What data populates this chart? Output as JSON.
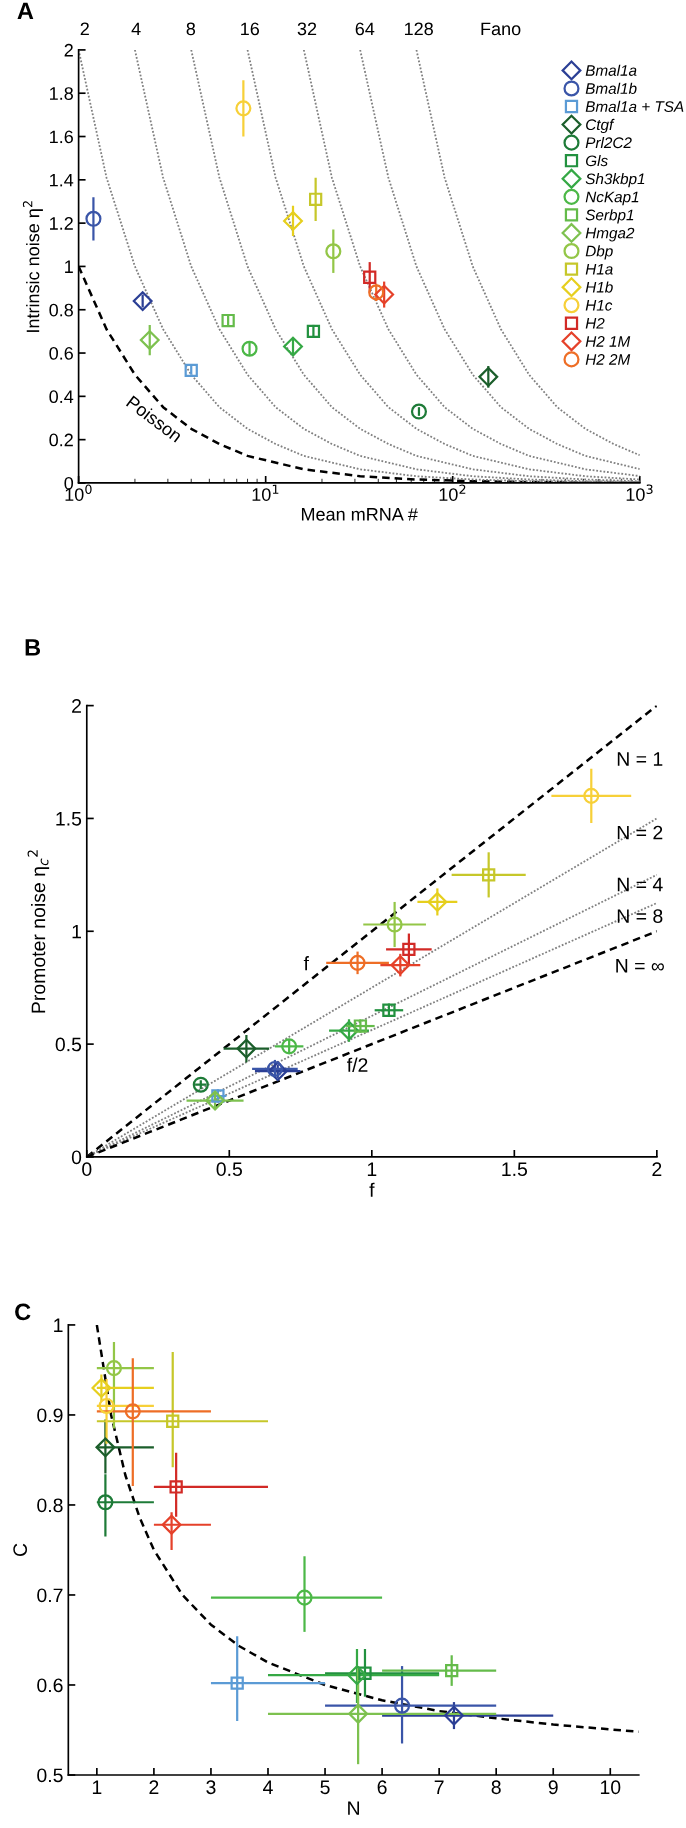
{
  "chart_data": [
    {
      "type": "scatter",
      "title": "A",
      "xlabel": "Mean mRNA #",
      "ylabel": "Intrinsic noise η$^{2}$",
      "log": "x",
      "legend": "top right",
      "xlim": [
        1,
        1000
      ],
      "ylim": [
        0,
        2
      ],
      "xticks": [
        {
          "value": 1,
          "label": "10$^{0}$"
        },
        {
          "value": 10,
          "label": "10$^{1}$"
        },
        {
          "value": 100,
          "label": "10$^{2}$"
        },
        {
          "value": 1000,
          "label": "10$^{3}$"
        }
      ],
      "yticks": [
        0,
        0.2,
        0.4,
        0.6,
        0.8,
        1,
        1.2,
        1.4,
        1.6,
        1.8,
        2
      ],
      "annotations": [
        "Poisson",
        "2",
        "4",
        "8",
        "16",
        "32",
        "64",
        "128",
        "Fano"
      ],
      "series": [
        {
          "type": "line",
          "color": "#000000",
          "line_style": "dashed",
          "x": [
            1,
            1.41,
            2,
            2.83,
            4,
            5.66,
            8,
            16,
            32,
            64,
            128,
            256,
            512,
            1000
          ],
          "values": [
            1,
            0.71,
            0.5,
            0.35,
            0.25,
            0.18,
            0.125,
            0.063,
            0.031,
            0.016,
            0.008,
            0.004,
            0.002,
            0.001
          ]
        },
        {
          "type": "line",
          "color": "#808080",
          "line_style": "dotted",
          "x": [
            1,
            1.41,
            2,
            2.83,
            4,
            5.66,
            8,
            11.3,
            16,
            32,
            64,
            128,
            256,
            1000
          ],
          "values": [
            2,
            1.41,
            1,
            0.71,
            0.5,
            0.35,
            0.25,
            0.18,
            0.125,
            0.063,
            0.031,
            0.016,
            0.008,
            0.002
          ]
        },
        {
          "type": "line",
          "color": "#808080",
          "line_style": "dotted",
          "x": [
            2,
            2.83,
            4,
            5.66,
            8,
            11.3,
            16,
            22.6,
            32,
            64,
            128,
            256,
            512,
            1000
          ],
          "values": [
            2,
            1.41,
            1,
            0.71,
            0.5,
            0.35,
            0.25,
            0.18,
            0.125,
            0.063,
            0.031,
            0.016,
            0.008,
            0.004
          ]
        },
        {
          "type": "line",
          "color": "#808080",
          "line_style": "dotted",
          "x": [
            4,
            5.66,
            8,
            11.3,
            16,
            22.6,
            32,
            45.3,
            64,
            128,
            256,
            512,
            1000
          ],
          "values": [
            2,
            1.41,
            1,
            0.71,
            0.5,
            0.35,
            0.25,
            0.18,
            0.125,
            0.063,
            0.031,
            0.016,
            0.008
          ]
        },
        {
          "type": "line",
          "color": "#808080",
          "line_style": "dotted",
          "x": [
            8,
            11.3,
            16,
            22.6,
            32,
            45.3,
            64,
            90.5,
            128,
            256,
            512,
            1000
          ],
          "values": [
            2,
            1.41,
            1,
            0.71,
            0.5,
            0.35,
            0.25,
            0.18,
            0.125,
            0.063,
            0.031,
            0.016
          ]
        },
        {
          "type": "line",
          "color": "#808080",
          "line_style": "dotted",
          "x": [
            16,
            22.6,
            32,
            45.3,
            64,
            90.5,
            128,
            181,
            256,
            512,
            1000
          ],
          "values": [
            2,
            1.41,
            1,
            0.71,
            0.5,
            0.35,
            0.25,
            0.18,
            0.125,
            0.063,
            0.032
          ]
        },
        {
          "type": "line",
          "color": "#808080",
          "line_style": "dotted",
          "x": [
            32,
            45.3,
            64,
            90.5,
            128,
            181,
            256,
            362,
            512,
            1000
          ],
          "values": [
            2,
            1.41,
            1,
            0.71,
            0.5,
            0.35,
            0.25,
            0.18,
            0.125,
            0.064
          ]
        },
        {
          "type": "line",
          "color": "#808080",
          "line_style": "dotted",
          "x": [
            64,
            90.5,
            128,
            181,
            256,
            362,
            512,
            724,
            1000
          ],
          "values": [
            2,
            1.41,
            1,
            0.71,
            0.5,
            0.35,
            0.25,
            0.18,
            0.128
          ]
        },
        {
          "name": "Bmal1a",
          "color": "#2b3f95",
          "marker": "diamond",
          "x": [
            2.2
          ],
          "values": [
            0.84
          ],
          "errors": [
            0.03
          ]
        },
        {
          "name": "Bmal1b",
          "color": "#3a55a8",
          "marker": "circle",
          "x": [
            1.2
          ],
          "values": [
            1.22
          ],
          "errors": [
            0.1
          ]
        },
        {
          "name": "Bmal1a + TSA",
          "color": "#5b9bd5",
          "marker": "square",
          "x": [
            4.0
          ],
          "values": [
            0.52
          ],
          "errors": [
            0.02
          ]
        },
        {
          "name": "Ctgf",
          "color": "#1b5e2b",
          "marker": "diamond",
          "x": [
            155
          ],
          "values": [
            0.49
          ],
          "errors": [
            0.05
          ]
        },
        {
          "name": "Prl2C2",
          "color": "#1e7b38",
          "marker": "circle",
          "x": [
            66
          ],
          "values": [
            0.33
          ],
          "errors": [
            0.02
          ]
        },
        {
          "name": "Gls",
          "color": "#22913f",
          "marker": "square",
          "x": [
            18
          ],
          "values": [
            0.7
          ],
          "errors": [
            0.03
          ]
        },
        {
          "name": "Sh3kbp1",
          "color": "#35a845",
          "marker": "diamond",
          "x": [
            14
          ],
          "values": [
            0.63
          ],
          "errors": [
            0.04
          ]
        },
        {
          "name": "NcKap1",
          "color": "#4cb847",
          "marker": "circle",
          "x": [
            8.2
          ],
          "values": [
            0.62
          ],
          "errors": [
            0.03
          ]
        },
        {
          "name": "Serbp1",
          "color": "#64bb4a",
          "marker": "square",
          "x": [
            6.3
          ],
          "values": [
            0.75
          ],
          "errors": [
            0.03
          ]
        },
        {
          "name": "Hmga2",
          "color": "#7dc14f",
          "marker": "diamond",
          "x": [
            2.4
          ],
          "values": [
            0.66
          ],
          "errors": [
            0.07
          ]
        },
        {
          "name": "Dbp",
          "color": "#93c647",
          "marker": "circle",
          "x": [
            23
          ],
          "values": [
            1.07
          ],
          "errors": [
            0.1
          ]
        },
        {
          "name": "H1a",
          "color": "#c6c72a",
          "marker": "square",
          "x": [
            18.5
          ],
          "values": [
            1.31
          ],
          "errors": [
            0.1
          ]
        },
        {
          "name": "H1b",
          "color": "#e6cf1e",
          "marker": "diamond",
          "x": [
            14
          ],
          "values": [
            1.21
          ],
          "errors": [
            0.07
          ]
        },
        {
          "name": "H1c",
          "color": "#f7d038",
          "marker": "circle",
          "x": [
            7.6
          ],
          "values": [
            1.73
          ],
          "errors": [
            0.13
          ]
        },
        {
          "name": "H2",
          "color": "#d22a26",
          "marker": "square",
          "x": [
            36
          ],
          "values": [
            0.95
          ],
          "errors": [
            0.07
          ]
        },
        {
          "name": "H2 1M",
          "color": "#e5412a",
          "marker": "diamond",
          "x": [
            43
          ],
          "values": [
            0.87
          ],
          "errors": [
            0.06
          ]
        },
        {
          "name": "H2 2M",
          "color": "#ee6e26",
          "marker": "circle",
          "x": [
            39
          ],
          "values": [
            0.88
          ],
          "errors": [
            0.04
          ]
        }
      ]
    },
    {
      "type": "scatter",
      "title": "B",
      "xlabel": "f",
      "ylabel": "Promoter noise η$_{c}$$^{2}$",
      "xlim": [
        0,
        2
      ],
      "ylim": [
        0,
        2
      ],
      "xticks": [
        0,
        0.5,
        1,
        1.5,
        2
      ],
      "yticks": [
        0,
        0.5,
        1,
        1.5,
        2
      ],
      "annotations": [
        "N = 1",
        "N = 2",
        "N = 4",
        "N = 8",
        "N = ∞",
        "f",
        "f/2"
      ],
      "series": [
        {
          "type": "line",
          "color": "#000000",
          "line_style": "dashed",
          "x": [
            0,
            2
          ],
          "values": [
            0,
            2
          ]
        },
        {
          "type": "line",
          "color": "#808080",
          "line_style": "dotted",
          "x": [
            0,
            2
          ],
          "values": [
            0,
            1.5
          ]
        },
        {
          "type": "line",
          "color": "#808080",
          "line_style": "dotted",
          "x": [
            0,
            2
          ],
          "values": [
            0,
            1.25
          ]
        },
        {
          "type": "line",
          "color": "#808080",
          "line_style": "dotted",
          "x": [
            0,
            2
          ],
          "values": [
            0,
            1.125
          ]
        },
        {
          "type": "line",
          "color": "#000000",
          "line_style": "dashed",
          "x": [
            0,
            2
          ],
          "values": [
            0,
            1
          ]
        },
        {
          "color": "#2b3f95",
          "marker": "diamond",
          "x": [
            0.67
          ],
          "values": [
            0.38
          ],
          "xerrors": [
            0.08
          ],
          "errors": [
            0.03
          ]
        },
        {
          "color": "#3a55a8",
          "marker": "circle",
          "x": [
            0.66
          ],
          "values": [
            0.39
          ],
          "xerrors": [
            0.08
          ],
          "errors": [
            0.04
          ]
        },
        {
          "color": "#5b9bd5",
          "marker": "square",
          "x": [
            0.46
          ],
          "values": [
            0.27
          ],
          "xerrors": [
            0.03
          ],
          "errors": [
            0.03
          ]
        },
        {
          "color": "#1b5e2b",
          "marker": "diamond",
          "x": [
            0.56
          ],
          "values": [
            0.48
          ],
          "xerrors": [
            0.08
          ],
          "errors": [
            0.06
          ]
        },
        {
          "color": "#1e7b38",
          "marker": "circle",
          "x": [
            0.4
          ],
          "values": [
            0.32
          ],
          "xerrors": [
            0.02
          ],
          "errors": [
            0.02
          ]
        },
        {
          "color": "#22913f",
          "marker": "square",
          "x": [
            1.06
          ],
          "values": [
            0.65
          ],
          "xerrors": [
            0.05
          ],
          "errors": [
            0.03
          ]
        },
        {
          "color": "#35a845",
          "marker": "diamond",
          "x": [
            0.92
          ],
          "values": [
            0.56
          ],
          "xerrors": [
            0.07
          ],
          "errors": [
            0.05
          ]
        },
        {
          "color": "#4cb847",
          "marker": "circle",
          "x": [
            0.71
          ],
          "values": [
            0.49
          ],
          "xerrors": [
            0.05
          ],
          "errors": [
            0.03
          ]
        },
        {
          "color": "#64bb4a",
          "marker": "square",
          "x": [
            0.96
          ],
          "values": [
            0.58
          ],
          "xerrors": [
            0.05
          ],
          "errors": [
            0.03
          ]
        },
        {
          "color": "#7dc14f",
          "marker": "diamond",
          "x": [
            0.45
          ],
          "values": [
            0.25
          ],
          "xerrors": [
            0.1
          ],
          "errors": [
            0.04
          ]
        },
        {
          "color": "#93c647",
          "marker": "circle",
          "x": [
            1.08
          ],
          "values": [
            1.03
          ],
          "xerrors": [
            0.11
          ],
          "errors": [
            0.1
          ]
        },
        {
          "color": "#c6c72a",
          "marker": "square",
          "x": [
            1.41
          ],
          "values": [
            1.25
          ],
          "xerrors": [
            0.13
          ],
          "errors": [
            0.1
          ]
        },
        {
          "color": "#e6cf1e",
          "marker": "diamond",
          "x": [
            1.23
          ],
          "values": [
            1.13
          ],
          "xerrors": [
            0.07
          ],
          "errors": [
            0.06
          ]
        },
        {
          "color": "#f7d038",
          "marker": "circle",
          "x": [
            1.77
          ],
          "values": [
            1.6
          ],
          "xerrors": [
            0.14
          ],
          "errors": [
            0.12
          ]
        },
        {
          "color": "#d22a26",
          "marker": "square",
          "x": [
            1.13
          ],
          "values": [
            0.92
          ],
          "xerrors": [
            0.08
          ],
          "errors": [
            0.07
          ]
        },
        {
          "color": "#e5412a",
          "marker": "diamond",
          "x": [
            1.1
          ],
          "values": [
            0.85
          ],
          "xerrors": [
            0.07
          ],
          "errors": [
            0.05
          ]
        },
        {
          "color": "#ee6e26",
          "marker": "circle",
          "x": [
            0.95
          ],
          "values": [
            0.86
          ],
          "xerrors": [
            0.11
          ],
          "errors": [
            0.05
          ]
        }
      ]
    },
    {
      "type": "scatter",
      "title": "C",
      "xlabel": "N",
      "ylabel": "C",
      "xlim": [
        0.5,
        10.5
      ],
      "ylim": [
        0.5,
        1
      ],
      "xticks": [
        1,
        2,
        3,
        4,
        5,
        6,
        7,
        8,
        9,
        10
      ],
      "yticks": [
        0.5,
        0.6,
        0.7,
        0.8,
        0.9,
        1
      ],
      "series": [
        {
          "type": "line",
          "color": "#000000",
          "line_style": "dashed",
          "x": [
            1,
            1.25,
            1.5,
            1.75,
            2,
            2.5,
            3,
            3.5,
            4,
            5,
            6,
            7,
            8,
            9,
            10.5
          ],
          "values": [
            1,
            0.9,
            0.833,
            0.786,
            0.75,
            0.7,
            0.667,
            0.643,
            0.625,
            0.6,
            0.583,
            0.571,
            0.563,
            0.556,
            0.548
          ]
        },
        {
          "color": "#2b3f95",
          "marker": "diamond",
          "x": [
            7.26
          ],
          "values": [
            0.566
          ],
          "xerrors": [
            [
              6,
              9
            ]
          ],
          "errors": [
            [
              0.551,
              0.581
            ]
          ]
        },
        {
          "color": "#3a55a8",
          "marker": "circle",
          "x": [
            6.35
          ],
          "values": [
            0.577
          ],
          "xerrors": [
            [
              5,
              8
            ]
          ],
          "errors": [
            [
              0.535,
              0.621
            ]
          ]
        },
        {
          "color": "#5b9bd5",
          "marker": "square",
          "x": [
            3.46
          ],
          "values": [
            0.602
          ],
          "xerrors": [
            [
              3,
              5
            ]
          ],
          "errors": [
            [
              0.56,
              0.654
            ]
          ]
        },
        {
          "color": "#1b5e2b",
          "marker": "diamond",
          "x": [
            1.15
          ],
          "values": [
            0.864
          ],
          "xerrors": [
            [
              1,
              2
            ]
          ],
          "errors": [
            [
              0.835,
              0.895
            ]
          ]
        },
        {
          "color": "#1e7b38",
          "marker": "circle",
          "x": [
            1.15
          ],
          "values": [
            0.803
          ],
          "xerrors": [
            [
              1,
              2
            ]
          ],
          "errors": [
            [
              0.765,
              0.834
            ]
          ]
        },
        {
          "color": "#22913f",
          "marker": "square",
          "x": [
            5.7
          ],
          "values": [
            0.613
          ],
          "xerrors": [
            [
              5,
              7
            ]
          ],
          "errors": [
            [
              0.587,
              0.64
            ]
          ]
        },
        {
          "color": "#35a845",
          "marker": "diamond",
          "x": [
            5.56
          ],
          "values": [
            0.611
          ],
          "xerrors": [
            [
              4,
              7
            ]
          ],
          "errors": [
            [
              0.58,
              0.64
            ]
          ]
        },
        {
          "color": "#4cb847",
          "marker": "circle",
          "x": [
            4.64
          ],
          "values": [
            0.697
          ],
          "xerrors": [
            [
              3,
              6
            ]
          ],
          "errors": [
            [
              0.659,
              0.743
            ]
          ]
        },
        {
          "color": "#64bb4a",
          "marker": "square",
          "x": [
            7.22
          ],
          "values": [
            0.616
          ],
          "xerrors": [
            [
              6,
              8
            ]
          ],
          "errors": [
            [
              0.599,
              0.633
            ]
          ]
        },
        {
          "color": "#7dc14f",
          "marker": "diamond",
          "x": [
            5.58
          ],
          "values": [
            0.568
          ],
          "xerrors": [
            [
              4,
              8
            ]
          ],
          "errors": [
            [
              0.512,
              0.621
            ]
          ]
        },
        {
          "color": "#93c647",
          "marker": "circle",
          "x": [
            1.3
          ],
          "values": [
            0.952
          ],
          "xerrors": [
            [
              1,
              2
            ]
          ],
          "errors": [
            [
              0.885,
              0.981
            ]
          ]
        },
        {
          "color": "#c6c72a",
          "marker": "square",
          "x": [
            2.33
          ],
          "values": [
            0.893
          ],
          "xerrors": [
            [
              1,
              4
            ]
          ],
          "errors": [
            [
              0.842,
              0.97
            ]
          ]
        },
        {
          "color": "#e6cf1e",
          "marker": "diamond",
          "x": [
            1.08
          ],
          "values": [
            0.93
          ],
          "xerrors": [
            [
              1,
              2
            ]
          ],
          "errors": [
            [
              0.915,
              0.945
            ]
          ]
        },
        {
          "color": "#f7d038",
          "marker": "circle",
          "x": [
            1.17
          ],
          "values": [
            0.91
          ],
          "xerrors": [
            [
              1,
              2
            ]
          ],
          "errors": [
            [
              0.868,
              0.94
            ]
          ]
        },
        {
          "color": "#d22a26",
          "marker": "square",
          "x": [
            2.39
          ],
          "values": [
            0.82
          ],
          "xerrors": [
            [
              2,
              4
            ]
          ],
          "errors": [
            [
              0.787,
              0.858
            ]
          ]
        },
        {
          "color": "#e5412a",
          "marker": "diamond",
          "x": [
            2.31
          ],
          "values": [
            0.778
          ],
          "xerrors": [
            [
              2,
              3
            ]
          ],
          "errors": [
            [
              0.75,
              0.792
            ]
          ]
        },
        {
          "color": "#ee6e26",
          "marker": "circle",
          "x": [
            1.63
          ],
          "values": [
            0.904
          ],
          "xerrors": [
            [
              1,
              3
            ]
          ],
          "errors": [
            [
              0.821,
              0.963
            ]
          ]
        }
      ]
    }
  ]
}
